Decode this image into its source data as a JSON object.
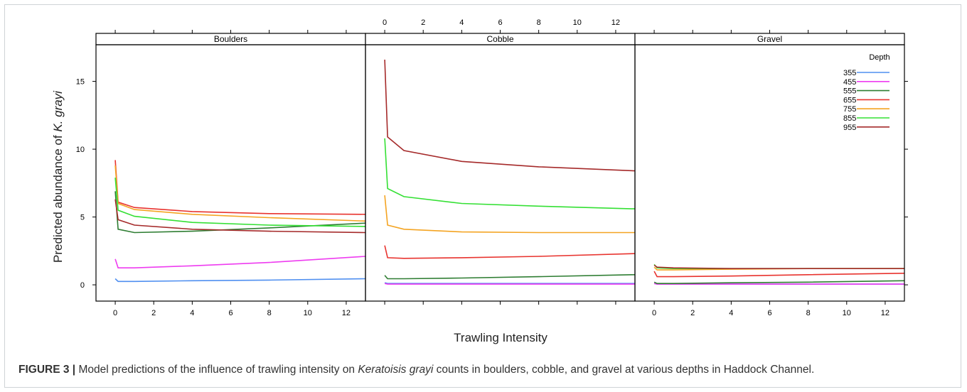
{
  "chart_data": {
    "type": "line",
    "ylabel_prefix": "Predicted abundance of ",
    "ylabel_italic": "K. grayi",
    "xlabel": "Trawling Intensity",
    "xlim": [
      -1,
      13
    ],
    "ylim": [
      -1.2,
      17.7
    ],
    "x_ticks": [
      0,
      2,
      4,
      6,
      8,
      10,
      12
    ],
    "y_ticks": [
      0,
      5,
      10,
      15
    ],
    "legend": {
      "title": "Depth",
      "placement": "top-right",
      "entries": [
        {
          "name": "355",
          "color": "#4f8ff0"
        },
        {
          "name": "455",
          "color": "#ee3cf0"
        },
        {
          "name": "555",
          "color": "#2e7d32"
        },
        {
          "name": "655",
          "color": "#e8332e"
        },
        {
          "name": "755",
          "color": "#f4a422"
        },
        {
          "name": "855",
          "color": "#34e034"
        },
        {
          "name": "955",
          "color": "#a52a2a"
        }
      ]
    },
    "panels": [
      {
        "strip": "Boulders",
        "series": [
          {
            "name": "355",
            "x": [
              0,
              0.15,
              1,
              4,
              8,
              13
            ],
            "y": [
              0.45,
              0.25,
              0.25,
              0.3,
              0.35,
              0.45
            ]
          },
          {
            "name": "455",
            "x": [
              0,
              0.15,
              1,
              4,
              8,
              13
            ],
            "y": [
              1.9,
              1.25,
              1.25,
              1.4,
              1.65,
              2.1
            ]
          },
          {
            "name": "555",
            "x": [
              0,
              0.15,
              1,
              4,
              8,
              13
            ],
            "y": [
              6.9,
              4.1,
              3.85,
              3.95,
              4.2,
              4.55
            ]
          },
          {
            "name": "655",
            "x": [
              0,
              0.15,
              1,
              4,
              8,
              13
            ],
            "y": [
              9.2,
              6.1,
              5.7,
              5.4,
              5.25,
              5.2
            ]
          },
          {
            "name": "755",
            "x": [
              0,
              0.15,
              1,
              4,
              8,
              13
            ],
            "y": [
              8.8,
              6.0,
              5.55,
              5.2,
              4.95,
              4.7
            ]
          },
          {
            "name": "855",
            "x": [
              0,
              0.15,
              1,
              4,
              8,
              13
            ],
            "y": [
              7.9,
              5.5,
              5.05,
              4.6,
              4.4,
              4.3
            ]
          },
          {
            "name": "955",
            "x": [
              0,
              0.15,
              1,
              4,
              8,
              13
            ],
            "y": [
              6.3,
              4.8,
              4.4,
              4.1,
              3.95,
              3.85
            ]
          }
        ]
      },
      {
        "strip": "Cobble",
        "series": [
          {
            "name": "355",
            "x": [
              0,
              0.15,
              1,
              4,
              8,
              13
            ],
            "y": [
              0.15,
              0.1,
              0.1,
              0.1,
              0.1,
              0.1
            ]
          },
          {
            "name": "455",
            "x": [
              0,
              0.15,
              1,
              4,
              8,
              13
            ],
            "y": [
              0.1,
              0.05,
              0.05,
              0.05,
              0.05,
              0.05
            ]
          },
          {
            "name": "555",
            "x": [
              0,
              0.15,
              1,
              4,
              8,
              13
            ],
            "y": [
              0.7,
              0.45,
              0.45,
              0.5,
              0.6,
              0.75
            ]
          },
          {
            "name": "655",
            "x": [
              0,
              0.15,
              1,
              4,
              8,
              13
            ],
            "y": [
              2.9,
              2.0,
              1.95,
              2.0,
              2.1,
              2.3
            ]
          },
          {
            "name": "755",
            "x": [
              0,
              0.15,
              1,
              4,
              8,
              13
            ],
            "y": [
              6.6,
              4.4,
              4.1,
              3.9,
              3.85,
              3.85
            ]
          },
          {
            "name": "855",
            "x": [
              0,
              0.15,
              1,
              4,
              8,
              13
            ],
            "y": [
              10.8,
              7.1,
              6.5,
              6.0,
              5.8,
              5.6
            ]
          },
          {
            "name": "955",
            "x": [
              0,
              0.15,
              1,
              4,
              8,
              13
            ],
            "y": [
              16.6,
              10.9,
              9.9,
              9.1,
              8.7,
              8.4
            ]
          }
        ]
      },
      {
        "strip": "Gravel",
        "series": [
          {
            "name": "355",
            "x": [
              0,
              0.15,
              1,
              4,
              8,
              13
            ],
            "y": [
              0.1,
              0.05,
              0.05,
              0.05,
              0.05,
              0.05
            ]
          },
          {
            "name": "455",
            "x": [
              0,
              0.15,
              1,
              4,
              8,
              13
            ],
            "y": [
              0.1,
              0.05,
              0.05,
              0.05,
              0.05,
              0.05
            ]
          },
          {
            "name": "555",
            "x": [
              0,
              0.15,
              1,
              4,
              8,
              13
            ],
            "y": [
              0.2,
              0.1,
              0.1,
              0.15,
              0.2,
              0.3
            ]
          },
          {
            "name": "655",
            "x": [
              0,
              0.15,
              1,
              4,
              8,
              13
            ],
            "y": [
              1.0,
              0.6,
              0.6,
              0.65,
              0.75,
              0.85
            ]
          },
          {
            "name": "755",
            "x": [
              0,
              0.15,
              1,
              4,
              8,
              13
            ],
            "y": [
              1.3,
              1.1,
              1.1,
              1.15,
              1.2,
              1.2
            ]
          },
          {
            "name": "855",
            "x": [
              0,
              0.15,
              1,
              4,
              8,
              13
            ],
            "y": [
              1.5,
              1.25,
              1.2,
              1.2,
              1.2,
              1.2
            ]
          },
          {
            "name": "955",
            "x": [
              0,
              0.15,
              1,
              4,
              8,
              13
            ],
            "y": [
              1.45,
              1.3,
              1.25,
              1.2,
              1.2,
              1.2
            ]
          }
        ]
      }
    ]
  },
  "caption": {
    "label": "FIGURE 3 |",
    "text_before": " Model predictions of the influence of trawling intensity on ",
    "species": "Keratoisis grayi",
    "text_after": " counts in boulders, cobble, and gravel at various depths in Haddock Channel."
  }
}
